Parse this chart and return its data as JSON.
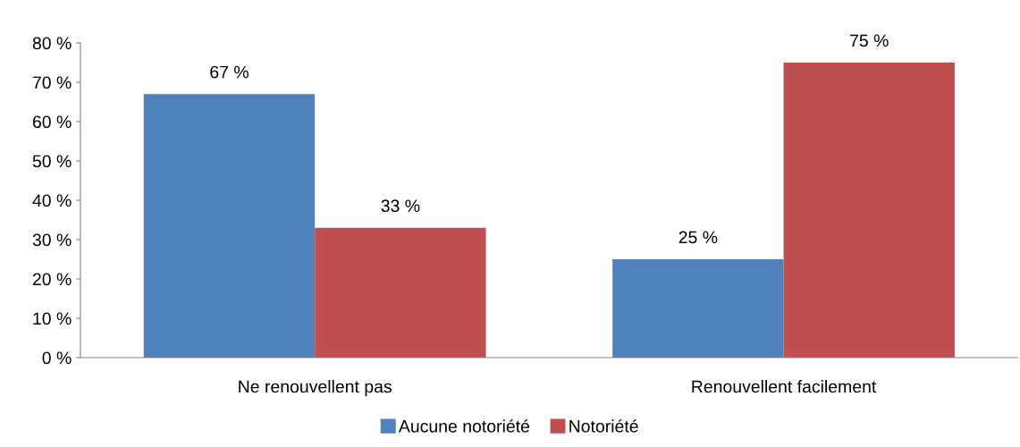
{
  "chart_data": {
    "type": "bar",
    "categories": [
      "Ne renouvellent pas",
      "Renouvellent facilement"
    ],
    "series": [
      {
        "name": "Aucune notoriété",
        "color": "#4f81bd",
        "values": [
          67,
          25
        ],
        "value_labels": [
          "67 %",
          "25 %"
        ]
      },
      {
        "name": "Notoriété",
        "color": "#c0504d",
        "values": [
          33,
          75
        ],
        "value_labels": [
          "33 %",
          "75 %"
        ]
      }
    ],
    "ylim": [
      0,
      80
    ],
    "yticks": [
      {
        "value": 0,
        "label": "0 %"
      },
      {
        "value": 10,
        "label": "10 %"
      },
      {
        "value": 20,
        "label": "20 %"
      },
      {
        "value": 30,
        "label": "30 %"
      },
      {
        "value": 40,
        "label": "40 %"
      },
      {
        "value": 50,
        "label": "50 %"
      },
      {
        "value": 60,
        "label": "60 %"
      },
      {
        "value": 70,
        "label": "70 %"
      },
      {
        "value": 80,
        "label": "80 %"
      }
    ],
    "grid": false,
    "legend": "bottom"
  }
}
